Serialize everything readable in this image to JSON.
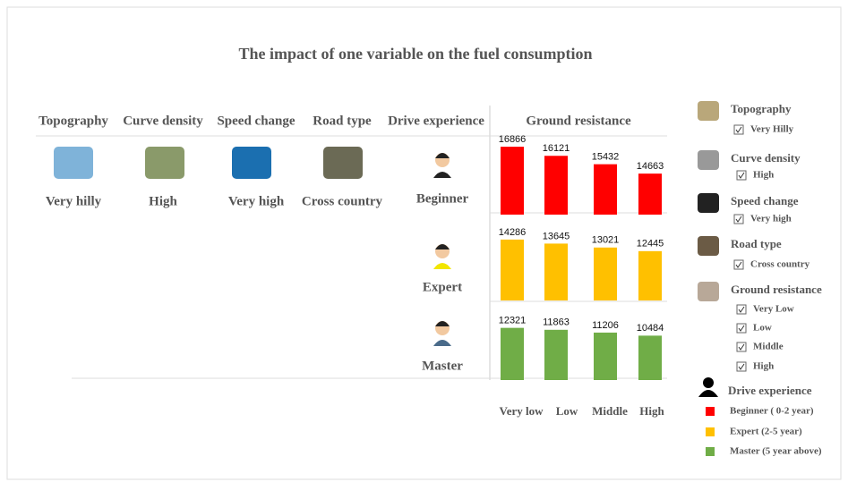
{
  "title": "The impact of one variable on the fuel consumption",
  "header_columns": [
    "Topography",
    "Curve density",
    "Speed change",
    "Road type",
    "Drive experience",
    "Ground resistance"
  ],
  "selected": [
    "Very hilly",
    "High",
    "Very high",
    "Cross country"
  ],
  "chart_data": {
    "type": "bar",
    "categories": [
      "Very low",
      "Low",
      "Middle",
      "High"
    ],
    "series": [
      {
        "name": "Beginner",
        "color": "#ff0000",
        "values": [
          16866,
          16121,
          15432,
          14663
        ],
        "ylim": [
          11300,
          17900
        ]
      },
      {
        "name": "Expert",
        "color": "#ffc000",
        "values": [
          14286,
          13645,
          13021,
          12445
        ],
        "ylim": [
          4600,
          17400
        ]
      },
      {
        "name": "Master",
        "color": "#70ad47",
        "values": [
          12321,
          11863,
          11206,
          10484
        ],
        "ylim": [
          0,
          19000
        ]
      }
    ]
  },
  "filters": [
    {
      "title": "Topography",
      "options": [
        "Very Hilly"
      ]
    },
    {
      "title": "Curve density",
      "options": [
        "High"
      ]
    },
    {
      "title": "Speed change",
      "options": [
        "Very high"
      ]
    },
    {
      "title": "Road type",
      "options": [
        "Cross country"
      ]
    },
    {
      "title": "Ground resistance",
      "options": [
        "Very Low",
        "Low",
        "Middle",
        "High"
      ]
    }
  ],
  "legend": {
    "title": "Drive experience",
    "entries": [
      "Beginner ( 0-2 year)",
      "Expert  (2-5 year)",
      "Master (5 year above)"
    ]
  }
}
